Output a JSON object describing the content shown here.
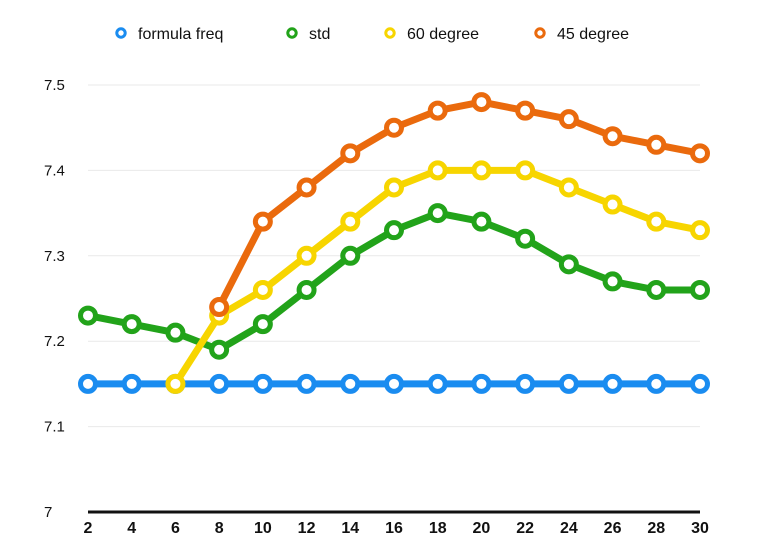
{
  "chart_data": {
    "type": "line",
    "title": "",
    "xlabel": "",
    "ylabel": "",
    "x": [
      2,
      4,
      6,
      8,
      10,
      12,
      14,
      16,
      18,
      20,
      22,
      24,
      26,
      28,
      30
    ],
    "ylim": [
      7,
      7.5
    ],
    "y_ticks": [
      7,
      7.1,
      7.2,
      7.3,
      7.4,
      7.5
    ],
    "y_tick_labels": [
      "7",
      "7.1",
      "7.2",
      "7.3",
      "7.4",
      "7.5"
    ],
    "x_tick_labels": [
      "2",
      "4",
      "6",
      "8",
      "10",
      "12",
      "14",
      "16",
      "18",
      "20",
      "22",
      "24",
      "26",
      "28",
      "30"
    ],
    "grid": true,
    "legend_position": "top",
    "series": [
      {
        "name": "formula freq",
        "color": "#1a8cf0",
        "values": [
          7.15,
          7.15,
          7.15,
          7.15,
          7.15,
          7.15,
          7.15,
          7.15,
          7.15,
          7.15,
          7.15,
          7.15,
          7.15,
          7.15,
          7.15
        ]
      },
      {
        "name": "std",
        "color": "#22a31a",
        "values": [
          7.23,
          7.22,
          7.21,
          7.19,
          7.22,
          7.26,
          7.3,
          7.33,
          7.35,
          7.34,
          7.32,
          7.29,
          7.27,
          7.26,
          7.26
        ]
      },
      {
        "name": "60 degree",
        "color": "#f7d500",
        "values": [
          null,
          null,
          7.15,
          7.23,
          7.26,
          7.3,
          7.34,
          7.38,
          7.4,
          7.4,
          7.4,
          7.38,
          7.36,
          7.34,
          7.33
        ]
      },
      {
        "name": "45 degree",
        "color": "#ea6a0d",
        "values": [
          null,
          null,
          null,
          7.24,
          7.34,
          7.38,
          7.42,
          7.45,
          7.47,
          7.48,
          7.47,
          7.46,
          7.44,
          7.43,
          7.42
        ]
      }
    ]
  }
}
